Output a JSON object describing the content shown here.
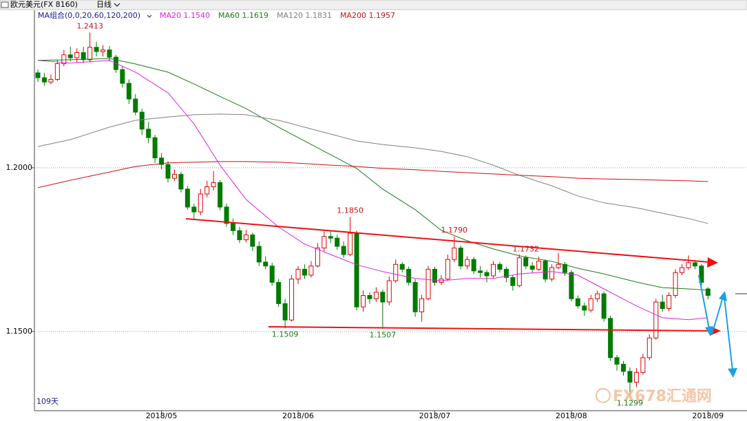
{
  "toolbar": {
    "symbol": "欧元美元(FX 8160)",
    "period": "日线"
  },
  "chart_data": {
    "type": "candlestick",
    "indicator_label": "MA组合(0,0,20,60,120,200)",
    "period_label": "109天",
    "watermark": "FX678汇通网",
    "categories": [
      null,
      null,
      null,
      null,
      null,
      null,
      null,
      null,
      null,
      null,
      null,
      null,
      null,
      null,
      null,
      null,
      null,
      null,
      null,
      "2018/05",
      null,
      null,
      null,
      null,
      null,
      null,
      null,
      null,
      null,
      null,
      null,
      null,
      null,
      null,
      null,
      null,
      null,
      null,
      null,
      null,
      "2018/06",
      null,
      null,
      null,
      null,
      null,
      null,
      null,
      null,
      null,
      null,
      null,
      null,
      null,
      null,
      null,
      null,
      null,
      null,
      null,
      null,
      "2018/07",
      null,
      null,
      null,
      null,
      null,
      null,
      null,
      null,
      null,
      null,
      null,
      null,
      null,
      null,
      null,
      null,
      null,
      null,
      null,
      null,
      "2018/08",
      null,
      null,
      null,
      null,
      null,
      null,
      null,
      null,
      null,
      null,
      null,
      null,
      null,
      null,
      null,
      null,
      null,
      null,
      null,
      null,
      "2018/09"
    ],
    "ohlc": [
      [
        1.229,
        1.23,
        1.2262,
        1.2275
      ],
      [
        1.2275,
        1.229,
        1.225,
        1.2262
      ],
      [
        1.2262,
        1.2285,
        1.2255,
        1.227
      ],
      [
        1.227,
        1.233,
        1.2265,
        1.2318
      ],
      [
        1.2318,
        1.236,
        1.231,
        1.2345
      ],
      [
        1.2345,
        1.237,
        1.2325,
        1.2336
      ],
      [
        1.2336,
        1.2365,
        1.232,
        1.2352
      ],
      [
        1.2352,
        1.237,
        1.232,
        1.233
      ],
      [
        1.233,
        1.2413,
        1.2322,
        1.2368
      ],
      [
        1.2368,
        1.2385,
        1.234,
        1.2355
      ],
      [
        1.2355,
        1.2375,
        1.234,
        1.236
      ],
      [
        1.236,
        1.2372,
        1.2325,
        1.2338
      ],
      [
        1.2338,
        1.2345,
        1.229,
        1.23
      ],
      [
        1.23,
        1.231,
        1.2245,
        1.2258
      ],
      [
        1.2258,
        1.227,
        1.2195,
        1.221
      ],
      [
        1.221,
        1.2225,
        1.216,
        1.217
      ],
      [
        1.217,
        1.218,
        1.21,
        1.2118
      ],
      [
        1.2118,
        1.214,
        1.2075,
        1.2092
      ],
      [
        1.2092,
        1.21,
        1.2015,
        1.203
      ],
      [
        1.203,
        1.2045,
        1.1995,
        1.201
      ],
      [
        1.201,
        1.202,
        1.1955,
        1.1968
      ],
      [
        1.1968,
        1.1995,
        1.196,
        1.198
      ],
      [
        1.198,
        1.1988,
        1.1925,
        1.1935
      ],
      [
        1.1935,
        1.1945,
        1.1872,
        1.188
      ],
      [
        1.188,
        1.189,
        1.1842,
        1.1865
      ],
      [
        1.1865,
        1.1935,
        1.1855,
        1.192
      ],
      [
        1.192,
        1.196,
        1.191,
        1.1942
      ],
      [
        1.1942,
        1.199,
        1.193,
        1.1955
      ],
      [
        1.1955,
        1.1962,
        1.187,
        1.188
      ],
      [
        1.188,
        1.189,
        1.182,
        1.183
      ],
      [
        1.183,
        1.1845,
        1.1795,
        1.1808
      ],
      [
        1.1808,
        1.182,
        1.177,
        1.178
      ],
      [
        1.178,
        1.181,
        1.1772,
        1.1795
      ],
      [
        1.1795,
        1.1802,
        1.1745,
        1.176
      ],
      [
        1.176,
        1.1775,
        1.17,
        1.1712
      ],
      [
        1.1712,
        1.173,
        1.169,
        1.17
      ],
      [
        1.17,
        1.171,
        1.164,
        1.165
      ],
      [
        1.165,
        1.166,
        1.1575,
        1.1585
      ],
      [
        1.1585,
        1.16,
        1.1509,
        1.1535
      ],
      [
        1.1535,
        1.1672,
        1.153,
        1.166
      ],
      [
        1.166,
        1.17,
        1.1645,
        1.169
      ],
      [
        1.169,
        1.1705,
        1.166,
        1.1672
      ],
      [
        1.1672,
        1.1715,
        1.1665,
        1.17
      ],
      [
        1.17,
        1.177,
        1.1695,
        1.1755
      ],
      [
        1.1755,
        1.1805,
        1.1745,
        1.179
      ],
      [
        1.179,
        1.1805,
        1.177,
        1.1785
      ],
      [
        1.1785,
        1.1795,
        1.175,
        1.176
      ],
      [
        1.176,
        1.1775,
        1.1725,
        1.1735
      ],
      [
        1.1735,
        1.185,
        1.173,
        1.18
      ],
      [
        1.18,
        1.1808,
        1.1565,
        1.1575
      ],
      [
        1.1575,
        1.1625,
        1.156,
        1.161
      ],
      [
        1.161,
        1.162,
        1.1585,
        1.16
      ],
      [
        1.16,
        1.1635,
        1.159,
        1.162
      ],
      [
        1.162,
        1.1628,
        1.1507,
        1.159
      ],
      [
        1.159,
        1.1668,
        1.158,
        1.1655
      ],
      [
        1.1655,
        1.172,
        1.1648,
        1.1705
      ],
      [
        1.1705,
        1.1712,
        1.168,
        1.169
      ],
      [
        1.169,
        1.1698,
        1.164,
        1.165
      ],
      [
        1.165,
        1.166,
        1.1545,
        1.156
      ],
      [
        1.156,
        1.1612,
        1.153,
        1.16
      ],
      [
        1.16,
        1.17,
        1.1595,
        1.169
      ],
      [
        1.169,
        1.1698,
        1.164,
        1.165
      ],
      [
        1.165,
        1.1672,
        1.1642,
        1.166
      ],
      [
        1.166,
        1.1735,
        1.1655,
        1.172
      ],
      [
        1.172,
        1.179,
        1.1712,
        1.1755
      ],
      [
        1.1755,
        1.1762,
        1.169,
        1.17
      ],
      [
        1.17,
        1.173,
        1.169,
        1.172
      ],
      [
        1.172,
        1.1728,
        1.1675,
        1.1685
      ],
      [
        1.1685,
        1.17,
        1.1665,
        1.168
      ],
      [
        1.168,
        1.1688,
        1.165,
        1.167
      ],
      [
        1.167,
        1.1715,
        1.1662,
        1.1705
      ],
      [
        1.1705,
        1.1712,
        1.168,
        1.169
      ],
      [
        1.169,
        1.1698,
        1.165,
        1.1665
      ],
      [
        1.1665,
        1.1672,
        1.1625,
        1.164
      ],
      [
        1.164,
        1.1735,
        1.1635,
        1.1725
      ],
      [
        1.1725,
        1.1732,
        1.169,
        1.17
      ],
      [
        1.17,
        1.1712,
        1.168,
        1.169
      ],
      [
        1.169,
        1.1728,
        1.1685,
        1.1715
      ],
      [
        1.1715,
        1.172,
        1.165,
        1.166
      ],
      [
        1.166,
        1.1705,
        1.1652,
        1.1695
      ],
      [
        1.1695,
        1.174,
        1.169,
        1.1705
      ],
      [
        1.1705,
        1.1712,
        1.167,
        1.168
      ],
      [
        1.168,
        1.1688,
        1.1592,
        1.16
      ],
      [
        1.16,
        1.161,
        1.157,
        1.1578
      ],
      [
        1.1578,
        1.1588,
        1.1548,
        1.1565
      ],
      [
        1.1565,
        1.1612,
        1.1558,
        1.16
      ],
      [
        1.16,
        1.1625,
        1.159,
        1.1615
      ],
      [
        1.1615,
        1.1622,
        1.153,
        1.154
      ],
      [
        1.154,
        1.1548,
        1.141,
        1.142
      ],
      [
        1.142,
        1.1428,
        1.138,
        1.14
      ],
      [
        1.14,
        1.141,
        1.1365,
        1.1378
      ],
      [
        1.1378,
        1.139,
        1.1299,
        1.1345
      ],
      [
        1.1345,
        1.1388,
        1.133,
        1.1375
      ],
      [
        1.1375,
        1.1432,
        1.1368,
        1.142
      ],
      [
        1.142,
        1.1492,
        1.1412,
        1.148
      ],
      [
        1.148,
        1.16,
        1.1475,
        1.159
      ],
      [
        1.159,
        1.1612,
        1.156,
        1.157
      ],
      [
        1.157,
        1.162,
        1.1562,
        1.161
      ],
      [
        1.161,
        1.169,
        1.1602,
        1.168
      ],
      [
        1.168,
        1.1705,
        1.1672,
        1.1695
      ],
      [
        1.1695,
        1.1732,
        1.1688,
        1.171
      ],
      [
        1.171,
        1.1718,
        1.169,
        1.17
      ],
      [
        1.17,
        1.1706,
        1.164,
        1.165
      ],
      [
        1.163,
        1.1635,
        1.1598,
        1.161
      ]
    ],
    "up_color": "#e00000",
    "down_color": "#007a00",
    "series": [
      {
        "name": "MA20",
        "legend_value": "1.1540",
        "color": "#e020e0",
        "x": [
          0,
          5,
          11,
          15,
          20,
          24,
          28,
          32,
          37,
          41,
          45,
          49,
          53,
          58,
          62,
          66,
          70,
          74,
          79,
          83,
          87,
          92,
          96,
          100,
          103
        ],
        "values": [
          1.2328,
          1.232,
          1.2328,
          1.2292,
          1.2229,
          1.2134,
          1.2008,
          1.1903,
          1.1819,
          1.1767,
          1.1735,
          1.1704,
          1.1683,
          1.1662,
          1.1655,
          1.1662,
          1.1662,
          1.1676,
          1.1683,
          1.1672,
          1.163,
          1.1578,
          1.1542,
          1.1536,
          1.1542
        ]
      },
      {
        "name": "MA60",
        "legend_value": "1.1619",
        "color": "#1a7a1a",
        "x": [
          0,
          5,
          11,
          15,
          20,
          24,
          28,
          32,
          37,
          41,
          45,
          49,
          53,
          58,
          62,
          66,
          70,
          74,
          79,
          83,
          87,
          92,
          96,
          100,
          103
        ],
        "values": [
          1.2328,
          1.233,
          1.2334,
          1.2317,
          1.2292,
          1.2256,
          1.2218,
          1.2181,
          1.2124,
          1.2082,
          1.204,
          1.1998,
          1.1935,
          1.1872,
          1.1809,
          1.1777,
          1.1752,
          1.1731,
          1.1714,
          1.1693,
          1.1676,
          1.1651,
          1.1634,
          1.163,
          1.1626
        ]
      },
      {
        "name": "MA120",
        "legend_value": "1.1831",
        "color": "#808080",
        "x": [
          0,
          5,
          11,
          15,
          20,
          24,
          28,
          32,
          37,
          41,
          45,
          49,
          53,
          58,
          62,
          66,
          70,
          74,
          79,
          83,
          87,
          92,
          96,
          100,
          103
        ],
        "values": [
          1.2065,
          1.2086,
          1.2124,
          1.2145,
          1.2155,
          1.2162,
          1.2164,
          1.2162,
          1.2145,
          1.2124,
          1.2103,
          1.2082,
          1.2071,
          1.2061,
          1.205,
          1.2034,
          1.2008,
          1.1977,
          1.1945,
          1.1914,
          1.1893,
          1.1878,
          1.1861,
          1.1845,
          1.183
        ]
      },
      {
        "name": "MA200",
        "legend_value": "1.1957",
        "color": "#cc1010",
        "x": [
          0,
          5,
          11,
          15,
          20,
          24,
          28,
          32,
          37,
          41,
          45,
          49,
          53,
          58,
          62,
          66,
          70,
          74,
          79,
          83,
          87,
          92,
          96,
          100,
          103
        ],
        "values": [
          1.1939,
          1.1962,
          1.1987,
          1.2004,
          1.2015,
          1.2017,
          1.2019,
          1.2019,
          1.2017,
          1.2013,
          1.2008,
          1.2004,
          1.1998,
          1.1994,
          1.1989,
          1.1985,
          1.1981,
          1.1977,
          1.1973,
          1.1968,
          1.1966,
          1.1964,
          1.1962,
          1.196,
          1.1958
        ]
      }
    ],
    "annotations": [
      {
        "value": 1.2413,
        "label": "1.2413"
      },
      {
        "value": 1.1509,
        "label": "1.1509"
      },
      {
        "value": 1.185,
        "label": "1.1850"
      },
      {
        "value": 1.1507,
        "label": "1.1507"
      },
      {
        "value": 1.179,
        "label": "1.1790"
      },
      {
        "value": 1.1299,
        "label": "1.1299"
      },
      {
        "value": 1.1732,
        "label": "1.1732"
      }
    ],
    "ylim": [
      1.1258,
      1.2481
    ],
    "yticks": [
      {
        "value": 1.2,
        "label": "1.2000"
      },
      {
        "value": 1.15,
        "label": "1.1500"
      }
    ],
    "grid": true
  }
}
